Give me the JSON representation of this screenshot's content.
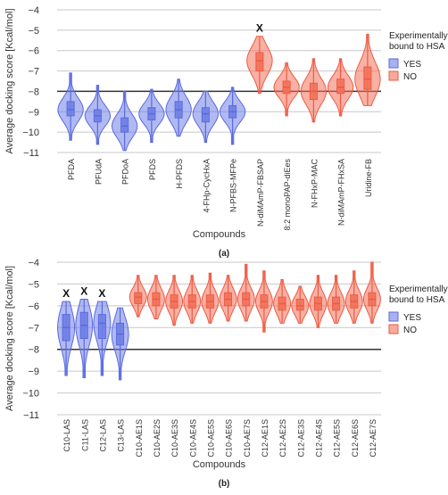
{
  "colors": {
    "yes": "#6f7fe6",
    "no": "#f2715a",
    "yes_edge": "#5a6ae0",
    "no_edge": "#ee5a42",
    "grid": "#c8c8c8",
    "threshold": "#333333"
  },
  "chart_data": [
    {
      "type": "violin",
      "panel_label": "(a)",
      "xlabel": "Compounds",
      "ylabel": "Average docking score [Kcal/mol]",
      "ylim": [
        -11,
        -4
      ],
      "yticks": [
        -4,
        -5,
        -6,
        -7,
        -8,
        -9,
        -10,
        -11
      ],
      "threshold": -8,
      "grid": true,
      "legend": {
        "title_line1": "Experimentally",
        "title_line2": "bound to HSA",
        "placement": "right",
        "entries": [
          "YES",
          "NO"
        ]
      },
      "series": [
        {
          "category": "PFDA",
          "group": "YES",
          "median": -8.9,
          "q1": -9.2,
          "q3": -8.5,
          "min": -10.4,
          "max": -7.1,
          "mark": ""
        },
        {
          "category": "PFUdA",
          "group": "YES",
          "median": -9.2,
          "q1": -9.5,
          "q3": -8.9,
          "min": -10.6,
          "max": -7.7,
          "mark": ""
        },
        {
          "category": "PFDoA",
          "group": "YES",
          "median": -9.7,
          "q1": -10.0,
          "q3": -9.3,
          "min": -10.9,
          "max": -8.0,
          "mark": ""
        },
        {
          "category": "PFDS",
          "group": "YES",
          "median": -9.1,
          "q1": -9.4,
          "q3": -8.8,
          "min": -10.5,
          "max": -7.9,
          "mark": ""
        },
        {
          "category": "H-PFDS",
          "group": "YES",
          "median": -8.9,
          "q1": -9.3,
          "q3": -8.5,
          "min": -10.2,
          "max": -7.4,
          "mark": ""
        },
        {
          "category": "4-FHp-CycHxA",
          "group": "YES",
          "median": -9.1,
          "q1": -9.5,
          "q3": -8.8,
          "min": -10.5,
          "max": -8.0,
          "mark": ""
        },
        {
          "category": "N-PFBS-MFPe",
          "group": "YES",
          "median": -9.0,
          "q1": -9.3,
          "q3": -8.7,
          "min": -10.6,
          "max": -7.8,
          "mark": ""
        },
        {
          "category": "N-diMAmP-FBSAP",
          "group": "NO",
          "median": -6.5,
          "q1": -7.0,
          "q3": -6.1,
          "min": -8.1,
          "max": -5.3,
          "mark": "X"
        },
        {
          "category": "8:2 monoPAP-diEes",
          "group": "NO",
          "median": -7.8,
          "q1": -8.1,
          "q3": -7.5,
          "min": -9.2,
          "max": -6.6,
          "mark": ""
        },
        {
          "category": "N-FHxP-MAC",
          "group": "NO",
          "median": -8.0,
          "q1": -8.4,
          "q3": -7.6,
          "min": -9.5,
          "max": -6.4,
          "mark": ""
        },
        {
          "category": "N-diMAmP-FHxSA",
          "group": "NO",
          "median": -7.8,
          "q1": -8.1,
          "q3": -7.4,
          "min": -9.2,
          "max": -6.4,
          "mark": ""
        },
        {
          "category": "Uridine-FB",
          "group": "NO",
          "median": -7.4,
          "q1": -7.9,
          "q3": -6.8,
          "min": -8.7,
          "max": -5.2,
          "mark": ""
        }
      ]
    },
    {
      "type": "violin",
      "panel_label": "(b)",
      "xlabel": "Compounds",
      "ylabel": "Average docking score [Kcal/mol]",
      "ylim": [
        -11,
        -4
      ],
      "yticks": [
        -4,
        -5,
        -6,
        -7,
        -8,
        -9,
        -10,
        -11
      ],
      "threshold": -8,
      "grid": true,
      "legend": {
        "title_line1": "Experimentally",
        "title_line2": "bound to HSA",
        "placement": "right",
        "entries": [
          "YES",
          "NO"
        ]
      },
      "series": [
        {
          "category": "C10-LAS",
          "group": "YES",
          "median": -7.0,
          "q1": -7.6,
          "q3": -6.4,
          "min": -9.2,
          "max": -5.8,
          "mark": "X"
        },
        {
          "category": "C11-LAS",
          "group": "YES",
          "median": -6.9,
          "q1": -7.5,
          "q3": -6.3,
          "min": -9.3,
          "max": -5.7,
          "mark": "X"
        },
        {
          "category": "C12-LAS",
          "group": "YES",
          "median": -6.8,
          "q1": -7.5,
          "q3": -6.4,
          "min": -9.2,
          "max": -5.8,
          "mark": "X"
        },
        {
          "category": "C13-LAS",
          "group": "YES",
          "median": -7.3,
          "q1": -7.8,
          "q3": -6.8,
          "min": -9.4,
          "max": -6.1,
          "mark": ""
        },
        {
          "category": "C10-AE1S",
          "group": "NO",
          "median": -5.6,
          "q1": -5.9,
          "q3": -5.4,
          "min": -6.5,
          "max": -4.6,
          "mark": ""
        },
        {
          "category": "C10-AE2S",
          "group": "NO",
          "median": -5.7,
          "q1": -6.0,
          "q3": -5.4,
          "min": -6.6,
          "max": -4.6,
          "mark": ""
        },
        {
          "category": "C10-AE3S",
          "group": "NO",
          "median": -5.8,
          "q1": -6.1,
          "q3": -5.5,
          "min": -6.9,
          "max": -4.6,
          "mark": ""
        },
        {
          "category": "C10-AE4S",
          "group": "NO",
          "median": -5.8,
          "q1": -6.1,
          "q3": -5.5,
          "min": -6.8,
          "max": -4.6,
          "mark": ""
        },
        {
          "category": "C10-AE5S",
          "group": "NO",
          "median": -5.8,
          "q1": -6.1,
          "q3": -5.5,
          "min": -6.8,
          "max": -4.5,
          "mark": ""
        },
        {
          "category": "C10-AE6S",
          "group": "NO",
          "median": -5.7,
          "q1": -6.0,
          "q3": -5.4,
          "min": -6.7,
          "max": -4.6,
          "mark": ""
        },
        {
          "category": "C10-AE7S",
          "group": "NO",
          "median": -5.7,
          "q1": -6.0,
          "q3": -5.4,
          "min": -6.7,
          "max": -4.1,
          "mark": ""
        },
        {
          "category": "C12-AE1S",
          "group": "NO",
          "median": -5.8,
          "q1": -6.1,
          "q3": -5.5,
          "min": -7.2,
          "max": -4.4,
          "mark": ""
        },
        {
          "category": "C12-AE2S",
          "group": "NO",
          "median": -5.9,
          "q1": -6.2,
          "q3": -5.6,
          "min": -6.8,
          "max": -4.8,
          "mark": ""
        },
        {
          "category": "C12-AE3S",
          "group": "NO",
          "median": -6.0,
          "q1": -6.2,
          "q3": -5.7,
          "min": -6.8,
          "max": -5.1,
          "mark": ""
        },
        {
          "category": "C12-AE4S",
          "group": "NO",
          "median": -5.9,
          "q1": -6.2,
          "q3": -5.6,
          "min": -7.0,
          "max": -4.6,
          "mark": ""
        },
        {
          "category": "C12-AE5S",
          "group": "NO",
          "median": -5.9,
          "q1": -6.2,
          "q3": -5.6,
          "min": -6.8,
          "max": -4.6,
          "mark": ""
        },
        {
          "category": "C12-AE6S",
          "group": "NO",
          "median": -5.8,
          "q1": -6.1,
          "q3": -5.5,
          "min": -6.8,
          "max": -4.4,
          "mark": ""
        },
        {
          "category": "C12-AE7S",
          "group": "NO",
          "median": -5.7,
          "q1": -6.0,
          "q3": -5.4,
          "min": -6.8,
          "max": -4.0,
          "mark": ""
        }
      ]
    }
  ]
}
